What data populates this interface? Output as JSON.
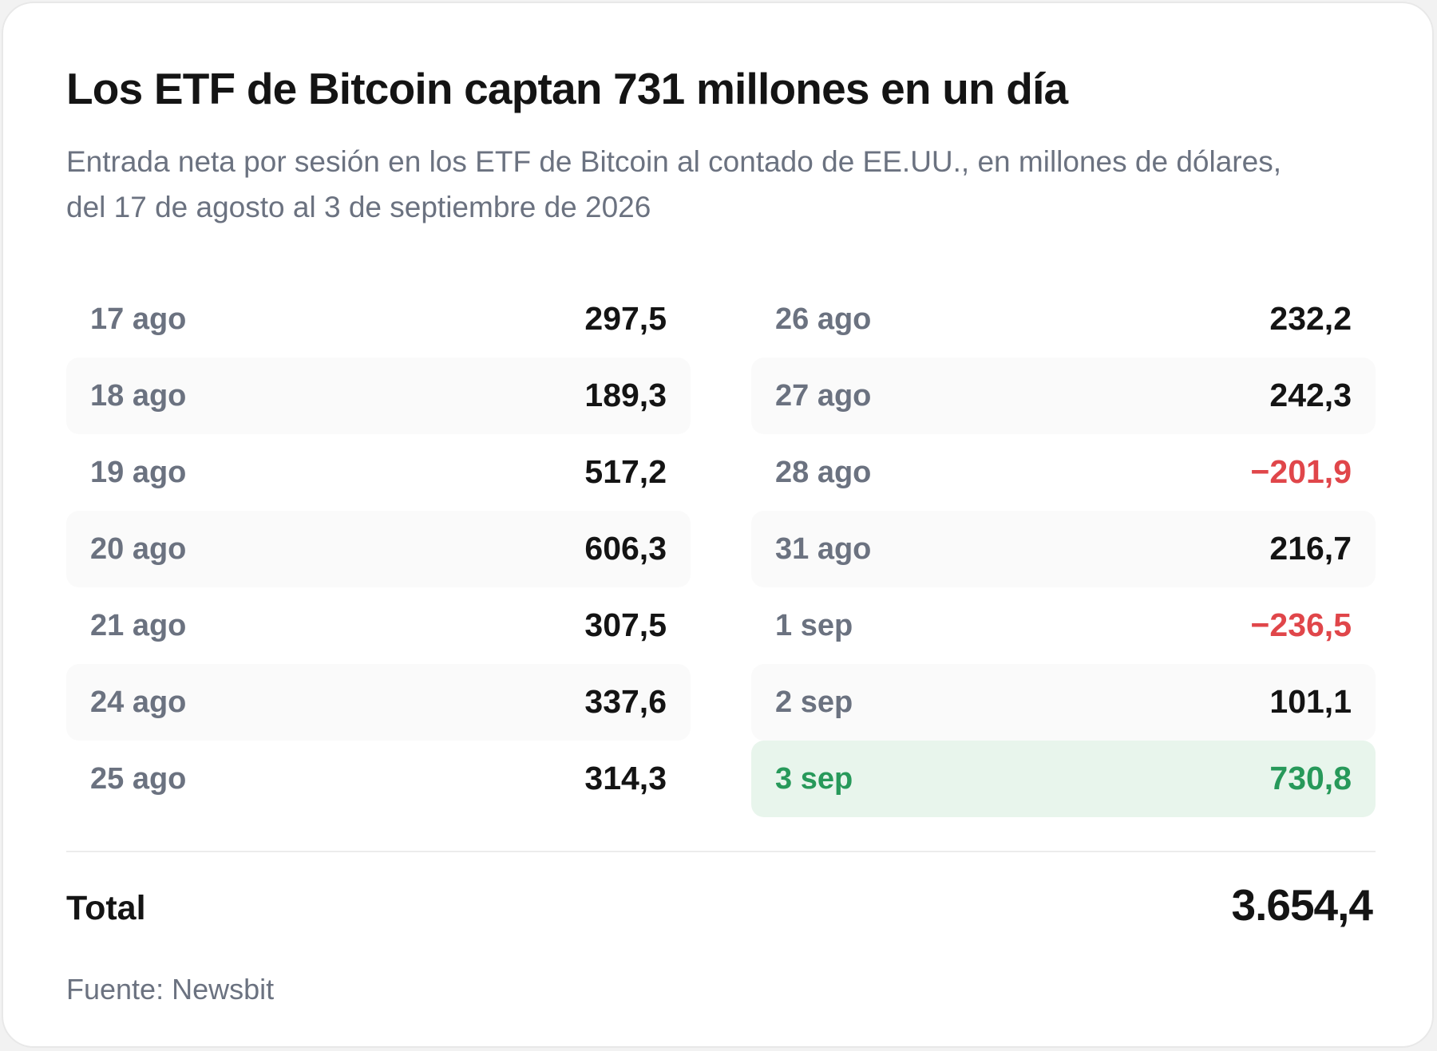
{
  "title": "Los ETF de Bitcoin captan 731 millones en un día",
  "subtitle": "Entrada neta por sesión en los ETF de Bitcoin al contado de EE.UU., en millones de dólares, del 17 de agosto al 3 de septiembre de 2026",
  "source": "Fuente: Newsbit",
  "colors": {
    "positive_text": "#141414",
    "negative": "#e0464a",
    "highlight": "#27995a",
    "highlight_bg": "#e8f5ec"
  },
  "chart_data": {
    "type": "table",
    "title": "Los ETF de Bitcoin captan 731 millones en un día",
    "columns": [
      "",
      ""
    ],
    "rows": [
      {
        "date": "17 ago",
        "value": 297.5,
        "label": "297,5"
      },
      {
        "date": "18 ago",
        "value": 189.3,
        "label": "189,3"
      },
      {
        "date": "19 ago",
        "value": 517.2,
        "label": "517,2"
      },
      {
        "date": "20 ago",
        "value": 606.3,
        "label": "606,3"
      },
      {
        "date": "21 ago",
        "value": 307.5,
        "label": "307,5"
      },
      {
        "date": "24 ago",
        "value": 337.6,
        "label": "337,6"
      },
      {
        "date": "25 ago",
        "value": 314.3,
        "label": "314,3"
      },
      {
        "date": "26 ago",
        "value": 232.2,
        "label": "232,2"
      },
      {
        "date": "27 ago",
        "value": 242.3,
        "label": "242,3"
      },
      {
        "date": "28 ago",
        "value": -201.9,
        "label": "−201,9"
      },
      {
        "date": "31 ago",
        "value": 216.7,
        "label": "216,7"
      },
      {
        "date": "1 sep",
        "value": -236.5,
        "label": "−236,5"
      },
      {
        "date": "2 sep",
        "value": 101.1,
        "label": "101,1"
      },
      {
        "date": "3 sep",
        "value": 730.8,
        "label": "730,8",
        "highlight": true
      }
    ],
    "total": {
      "label": "Total",
      "value": 3654.4,
      "text": "3.654,4"
    }
  }
}
